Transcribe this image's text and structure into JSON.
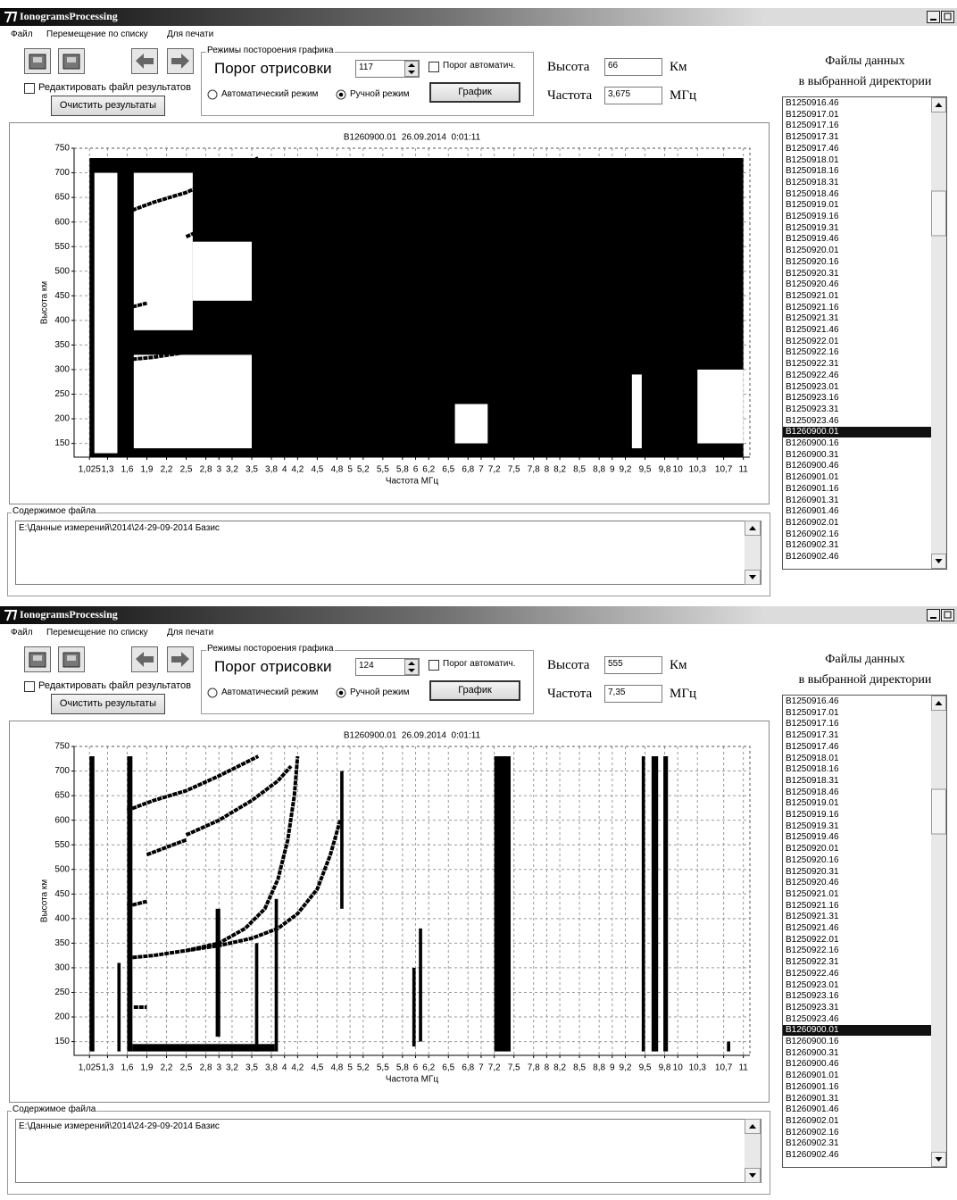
{
  "windows": [
    {
      "title": "IonogramsProcessing",
      "menu": [
        "Файл",
        "Перемещение по списку",
        "Для печати"
      ],
      "edit_results": {
        "label": "Редактировать файл результатов",
        "checked": false
      },
      "clear_button": "Очистить результаты",
      "mode_group": {
        "title": "Режимы постороения графика",
        "threshold_label": "Порог отрисовки",
        "threshold": 117,
        "auto_threshold": {
          "label": "Порог автоматич.",
          "checked": false
        },
        "radios": [
          {
            "label": "Автоматический режим",
            "checked": false
          },
          {
            "label": "Ручной режим",
            "checked": true
          }
        ],
        "plot_button": "График"
      },
      "height": {
        "label": "Высота",
        "value": 66,
        "unit": "Км"
      },
      "frequency": {
        "label": "Частота",
        "value": "3,675",
        "unit": "МГц"
      },
      "files": {
        "title": [
          "Файлы данных",
          "в выбранной директории"
        ],
        "selected": 29,
        "items": [
          "B1250916.46",
          "B1250917.01",
          "B1250917.16",
          "B1250917.31",
          "B1250917.46",
          "B1250918.01",
          "B1250918.16",
          "B1250918.31",
          "B1250918.46",
          "B1250919.01",
          "B1250919.16",
          "B1250919.31",
          "B1250919.46",
          "B1250920.01",
          "B1250920.16",
          "B1250920.31",
          "B1250920.46",
          "B1250921.01",
          "B1250921.16",
          "B1250921.31",
          "B1250921.46",
          "B1250922.01",
          "B1250922.16",
          "B1250922.31",
          "B1250922.46",
          "B1250923.01",
          "B1250923.16",
          "B1250923.31",
          "B1250923.46",
          "B1260900.01",
          "B1260900.16",
          "B1260900.31",
          "B1260900.46",
          "B1260901.01",
          "B1260901.16",
          "B1260901.31",
          "B1260901.46",
          "B1260902.01",
          "B1260902.16",
          "B1260902.31",
          "B1260902.46"
        ]
      },
      "content": {
        "title": "Содержимое файла",
        "text": "E:\\Данные измерений\\2014\\24-29-09-2014 Базис"
      }
    },
    {
      "title": "IonogramsProcessing",
      "menu": [
        "Файл",
        "Перемещение по списку",
        "Для печати"
      ],
      "edit_results": {
        "label": "Редактировать файл результатов",
        "checked": false
      },
      "clear_button": "Очистить результаты",
      "mode_group": {
        "title": "Режимы постороения графика",
        "threshold_label": "Порог отрисовки",
        "threshold": 124,
        "auto_threshold": {
          "label": "Порог автоматич.",
          "checked": false
        },
        "radios": [
          {
            "label": "Автоматический режим",
            "checked": false
          },
          {
            "label": "Ручной режим",
            "checked": true
          }
        ],
        "plot_button": "График"
      },
      "height": {
        "label": "Высота",
        "value": 555,
        "unit": "Км"
      },
      "frequency": {
        "label": "Частота",
        "value": "7,35",
        "unit": "МГц"
      },
      "files": {
        "title": [
          "Файлы данных",
          "в выбранной директории"
        ],
        "selected": 29,
        "items": [
          "B1250916.46",
          "B1250917.01",
          "B1250917.16",
          "B1250917.31",
          "B1250917.46",
          "B1250918.01",
          "B1250918.16",
          "B1250918.31",
          "B1250918.46",
          "B1250919.01",
          "B1250919.16",
          "B1250919.31",
          "B1250919.46",
          "B1250920.01",
          "B1250920.16",
          "B1250920.31",
          "B1250920.46",
          "B1250921.01",
          "B1250921.16",
          "B1250921.31",
          "B1250921.46",
          "B1250922.01",
          "B1250922.16",
          "B1250922.31",
          "B1250922.46",
          "B1250923.01",
          "B1250923.16",
          "B1250923.31",
          "B1250923.46",
          "B1260900.01",
          "B1260900.16",
          "B1260900.31",
          "B1260900.46",
          "B1260901.01",
          "B1260901.16",
          "B1260901.31",
          "B1260901.46",
          "B1260902.01",
          "B1260902.16",
          "B1260902.31",
          "B1260902.46"
        ]
      },
      "content": {
        "title": "Содержимое файла",
        "text": "E:\\Данные измерений\\2014\\24-29-09-2014 Базис"
      }
    }
  ],
  "chart_data": [
    {
      "type": "scatter",
      "title": "B1260900.01  26.09.2014  0:01:11",
      "xlabel": "Частота МГц",
      "ylabel": "Высота км",
      "xlim": [
        0.79,
        11.1
      ],
      "ylim": [
        122,
        750
      ],
      "grid": true,
      "yticks": [
        150,
        200,
        250,
        300,
        350,
        400,
        450,
        500,
        550,
        600,
        650,
        700,
        750
      ],
      "xticks": [
        {
          "value": 1.025,
          "label": "1,025"
        },
        {
          "value": 1.3,
          "label": "1,3"
        },
        {
          "value": 1.6,
          "label": "1,6"
        },
        {
          "value": 1.9,
          "label": "1,9"
        },
        {
          "value": 2.2,
          "label": "2,2"
        },
        {
          "value": 2.5,
          "label": "2,5"
        },
        {
          "value": 2.8,
          "label": "2,8"
        },
        3,
        {
          "value": 3.2,
          "label": "3,2"
        },
        {
          "value": 3.5,
          "label": "3,5"
        },
        {
          "value": 3.8,
          "label": "3,8"
        },
        4,
        {
          "value": 4.2,
          "label": "4,2"
        },
        {
          "value": 4.5,
          "label": "4,5"
        },
        {
          "value": 4.8,
          "label": "4,8"
        },
        5,
        {
          "value": 5.2,
          "label": "5,2"
        },
        {
          "value": 5.5,
          "label": "5,5"
        },
        {
          "value": 5.8,
          "label": "5,8"
        },
        6,
        {
          "value": 6.2,
          "label": "6,2"
        },
        {
          "value": 6.5,
          "label": "6,5"
        },
        {
          "value": 6.8,
          "label": "6,8"
        },
        7,
        {
          "value": 7.2,
          "label": "7,2"
        },
        {
          "value": 7.5,
          "label": "7,5"
        },
        {
          "value": 7.8,
          "label": "7,8"
        },
        8,
        {
          "value": 8.2,
          "label": "8,2"
        },
        {
          "value": 8.5,
          "label": "8,5"
        },
        {
          "value": 8.8,
          "label": "8,8"
        },
        9,
        {
          "value": 9.2,
          "label": "9,2"
        },
        {
          "value": 9.5,
          "label": "9,5"
        },
        {
          "value": 9.8,
          "label": "9,8"
        },
        10,
        {
          "value": 10.3,
          "label": "10,3"
        },
        {
          "value": 10.7,
          "label": "10,7"
        },
        11
      ],
      "regions": [
        {
          "x": [
            1.025,
            11
          ],
          "y": [
            122,
            730
          ],
          "color": "#000000"
        },
        {
          "x": [
            1.1,
            1.45
          ],
          "y": [
            130,
            700
          ],
          "color": "#ffffff"
        },
        {
          "x": [
            1.7,
            2.6
          ],
          "y": [
            380,
            700
          ],
          "color": "#ffffff"
        },
        {
          "x": [
            1.7,
            3.5
          ],
          "y": [
            140,
            330
          ],
          "color": "#ffffff"
        },
        {
          "x": [
            2.6,
            3.5
          ],
          "y": [
            440,
            560
          ],
          "color": "#ffffff"
        },
        {
          "x": [
            6.6,
            7.1
          ],
          "y": [
            150,
            230
          ],
          "color": "#ffffff"
        },
        {
          "x": [
            9.3,
            9.45
          ],
          "y": [
            140,
            290
          ],
          "color": "#ffffff"
        },
        {
          "x": [
            10.3,
            11
          ],
          "y": [
            150,
            300
          ],
          "color": "#ffffff"
        },
        {
          "x": [
            1.6,
            1.68
          ],
          "y": [
            130,
            730
          ],
          "color": "#000000"
        }
      ],
      "series": [
        {
          "color": "#000000",
          "x": [
            1.6,
            2.0,
            2.5,
            3.0,
            3.5,
            3.9,
            4.2,
            4.5,
            4.7,
            4.85
          ],
          "y": [
            320,
            325,
            335,
            345,
            360,
            380,
            410,
            460,
            530,
            600
          ]
        },
        {
          "color": "#000000",
          "x": [
            1.6,
            2.0,
            2.5,
            3.0,
            3.3,
            3.6
          ],
          "y": [
            620,
            640,
            660,
            690,
            710,
            730
          ]
        },
        {
          "color": "#000000",
          "x": [
            2.5,
            3.0,
            3.5,
            3.9,
            4.1
          ],
          "y": [
            570,
            600,
            640,
            680,
            710
          ]
        },
        {
          "color": "#000000",
          "x": [
            1.6,
            1.9
          ],
          "y": [
            425,
            435
          ]
        }
      ]
    },
    {
      "type": "scatter",
      "title": "B1260900.01  26.09.2014  0:01:11",
      "xlabel": "Частота МГц",
      "ylabel": "Высота км",
      "xlim": [
        0.79,
        11.1
      ],
      "ylim": [
        122,
        750
      ],
      "grid": true,
      "yticks": [
        150,
        200,
        250,
        300,
        350,
        400,
        450,
        500,
        550,
        600,
        650,
        700,
        750
      ],
      "xticks": [
        {
          "value": 1.025,
          "label": "1,025"
        },
        {
          "value": 1.3,
          "label": "1,3"
        },
        {
          "value": 1.6,
          "label": "1,6"
        },
        {
          "value": 1.9,
          "label": "1,9"
        },
        {
          "value": 2.2,
          "label": "2,2"
        },
        {
          "value": 2.5,
          "label": "2,5"
        },
        {
          "value": 2.8,
          "label": "2,8"
        },
        3,
        {
          "value": 3.2,
          "label": "3,2"
        },
        {
          "value": 3.5,
          "label": "3,5"
        },
        {
          "value": 3.8,
          "label": "3,8"
        },
        4,
        {
          "value": 4.2,
          "label": "4,2"
        },
        {
          "value": 4.5,
          "label": "4,5"
        },
        {
          "value": 4.8,
          "label": "4,8"
        },
        5,
        {
          "value": 5.2,
          "label": "5,2"
        },
        {
          "value": 5.5,
          "label": "5,5"
        },
        {
          "value": 5.8,
          "label": "5,8"
        },
        6,
        {
          "value": 6.2,
          "label": "6,2"
        },
        {
          "value": 6.5,
          "label": "6,5"
        },
        {
          "value": 6.8,
          "label": "6,8"
        },
        7,
        {
          "value": 7.2,
          "label": "7,2"
        },
        {
          "value": 7.5,
          "label": "7,5"
        },
        {
          "value": 7.8,
          "label": "7,8"
        },
        8,
        {
          "value": 8.2,
          "label": "8,2"
        },
        {
          "value": 8.5,
          "label": "8,5"
        },
        {
          "value": 8.8,
          "label": "8,8"
        },
        9,
        {
          "value": 9.2,
          "label": "9,2"
        },
        {
          "value": 9.5,
          "label": "9,5"
        },
        {
          "value": 9.8,
          "label": "9,8"
        },
        10,
        {
          "value": 10.3,
          "label": "10,3"
        },
        {
          "value": 10.7,
          "label": "10,7"
        },
        11
      ],
      "regions": [
        {
          "x": [
            1.025,
            1.1
          ],
          "y": [
            130,
            730
          ],
          "color": "#000000"
        },
        {
          "x": [
            1.45,
            1.5
          ],
          "y": [
            130,
            310
          ],
          "color": "#000000"
        },
        {
          "x": [
            1.6,
            1.68
          ],
          "y": [
            130,
            730
          ],
          "color": "#000000"
        },
        {
          "x": [
            1.68,
            3.85
          ],
          "y": [
            130,
            145
          ],
          "color": "#000000"
        },
        {
          "x": [
            2.95,
            3.02
          ],
          "y": [
            160,
            420
          ],
          "color": "#000000"
        },
        {
          "x": [
            3.55,
            3.6
          ],
          "y": [
            130,
            350
          ],
          "color": "#000000"
        },
        {
          "x": [
            3.85,
            3.9
          ],
          "y": [
            130,
            440
          ],
          "color": "#000000"
        },
        {
          "x": [
            4.85,
            4.9
          ],
          "y": [
            420,
            700
          ],
          "color": "#000000"
        },
        {
          "x": [
            5.95,
            6.0
          ],
          "y": [
            140,
            300
          ],
          "color": "#000000"
        },
        {
          "x": [
            6.05,
            6.1
          ],
          "y": [
            150,
            380
          ],
          "color": "#000000"
        },
        {
          "x": [
            7.2,
            7.45
          ],
          "y": [
            130,
            730
          ],
          "color": "#000000"
        },
        {
          "x": [
            9.45,
            9.5
          ],
          "y": [
            130,
            730
          ],
          "color": "#000000"
        },
        {
          "x": [
            9.6,
            9.7
          ],
          "y": [
            130,
            730
          ],
          "color": "#000000"
        },
        {
          "x": [
            9.78,
            9.85
          ],
          "y": [
            130,
            730
          ],
          "color": "#000000"
        },
        {
          "x": [
            10.75,
            10.8
          ],
          "y": [
            130,
            150
          ],
          "color": "#000000"
        }
      ],
      "series": [
        {
          "color": "#000000",
          "x": [
            1.6,
            2.0,
            2.5,
            3.0,
            3.5,
            3.9,
            4.2,
            4.5,
            4.7,
            4.85
          ],
          "y": [
            320,
            325,
            335,
            345,
            360,
            380,
            410,
            460,
            530,
            600
          ]
        },
        {
          "color": "#000000",
          "x": [
            2.5,
            3.0,
            3.4,
            3.7,
            3.9,
            4.05,
            4.15,
            4.2
          ],
          "y": [
            335,
            350,
            380,
            420,
            480,
            560,
            650,
            730
          ]
        },
        {
          "color": "#000000",
          "x": [
            1.6,
            2.0,
            2.5,
            3.0,
            3.3,
            3.6
          ],
          "y": [
            620,
            640,
            660,
            690,
            710,
            730
          ]
        },
        {
          "color": "#000000",
          "x": [
            2.5,
            3.0,
            3.5,
            3.9,
            4.1
          ],
          "y": [
            570,
            600,
            640,
            680,
            710
          ]
        },
        {
          "color": "#000000",
          "x": [
            1.9,
            2.2,
            2.5
          ],
          "y": [
            530,
            545,
            560
          ]
        },
        {
          "color": "#000000",
          "x": [
            1.6,
            1.9
          ],
          "y": [
            425,
            435
          ]
        },
        {
          "color": "#000000",
          "x": [
            1.7,
            1.9
          ],
          "y": [
            220,
            220
          ]
        }
      ]
    }
  ]
}
